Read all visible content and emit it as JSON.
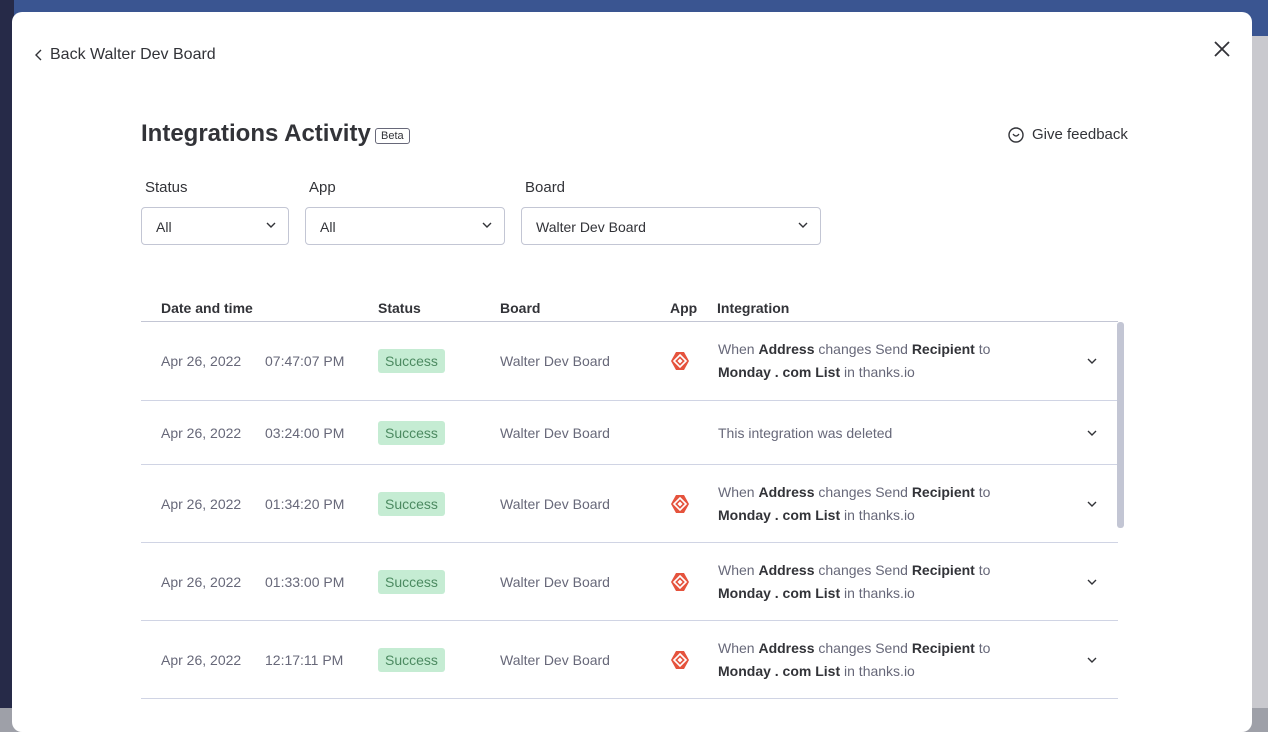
{
  "back": "Back Walter Dev Board",
  "header": {
    "title": "Integrations Activity",
    "badge": "Beta",
    "feedback": "Give feedback"
  },
  "filters": [
    {
      "label": "Status",
      "value": "All"
    },
    {
      "label": "App",
      "value": "All"
    },
    {
      "label": "Board",
      "value": "Walter Dev Board"
    }
  ],
  "table": {
    "columns": [
      "Date and time",
      "Status",
      "Board",
      "App",
      "Integration"
    ],
    "rows": [
      {
        "date": "Apr 26, 2022",
        "time": "07:47:07 PM",
        "status": "Success",
        "board": "Walter Dev Board",
        "integration": [
          [
            {
              "text": "When"
            },
            {
              "text": "Address",
              "bold": true
            },
            {
              "text": "changes Send"
            },
            {
              "text": "Recipient",
              "bold": true
            },
            {
              "text": "to"
            }
          ],
          [
            {
              "text": "Monday . com List",
              "bold": true
            },
            {
              "text": "in thanks.io"
            }
          ]
        ]
      },
      {
        "date": "Apr 26, 2022",
        "time": "03:24:00 PM",
        "status": "Success",
        "board": "Walter Dev Board",
        "note": "This integration was deleted"
      },
      {
        "date": "Apr 26, 2022",
        "time": "01:34:20 PM",
        "status": "Success",
        "board": "Walter Dev Board",
        "integration": [
          [
            {
              "text": "When"
            },
            {
              "text": "Address",
              "bold": true
            },
            {
              "text": "changes Send"
            },
            {
              "text": "Recipient",
              "bold": true
            },
            {
              "text": "to"
            }
          ],
          [
            {
              "text": "Monday . com List",
              "bold": true
            },
            {
              "text": "in thanks.io"
            }
          ]
        ]
      },
      {
        "date": "Apr 26, 2022",
        "time": "01:33:00 PM",
        "status": "Success",
        "board": "Walter Dev Board",
        "integration": [
          [
            {
              "text": "When"
            },
            {
              "text": "Address",
              "bold": true
            },
            {
              "text": "changes Send"
            },
            {
              "text": "Recipient",
              "bold": true
            },
            {
              "text": "to"
            }
          ],
          [
            {
              "text": "Monday . com List",
              "bold": true
            },
            {
              "text": "in thanks.io"
            }
          ]
        ]
      },
      {
        "date": "Apr 26, 2022",
        "time": "12:17:11 PM",
        "status": "Success",
        "board": "Walter Dev Board",
        "integration": [
          [
            {
              "text": "When"
            },
            {
              "text": "Address",
              "bold": true
            },
            {
              "text": "changes Send"
            },
            {
              "text": "Recipient",
              "bold": true
            },
            {
              "text": "to"
            }
          ],
          [
            {
              "text": "Monday . com List",
              "bold": true
            },
            {
              "text": "in thanks.io"
            }
          ]
        ]
      }
    ]
  }
}
